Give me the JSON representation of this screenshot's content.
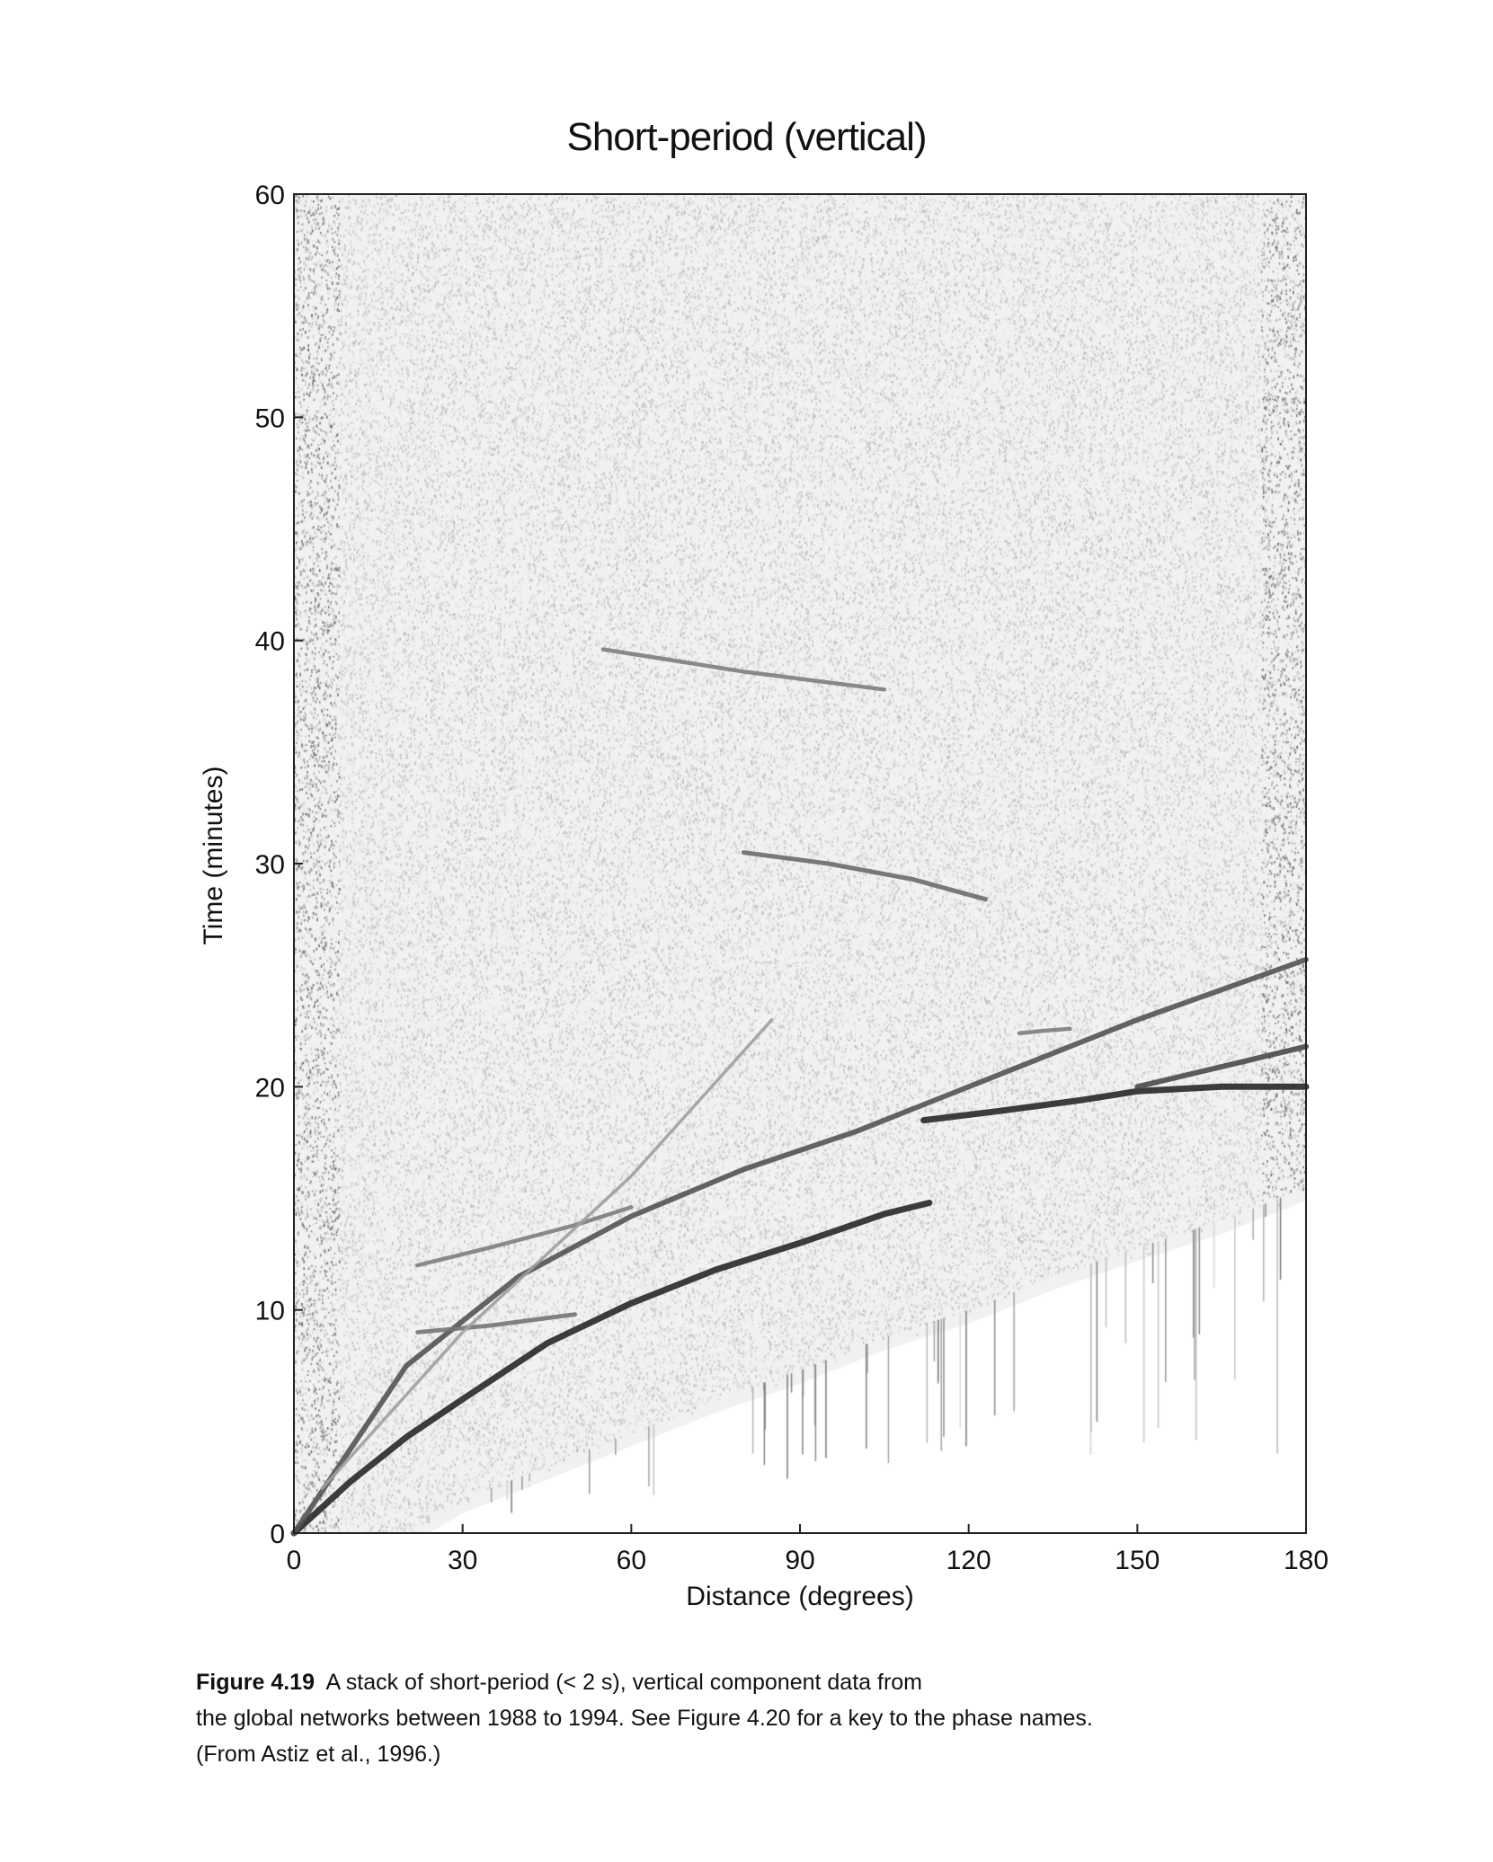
{
  "chart_data": {
    "type": "heatmap",
    "title": "Short-period (vertical)",
    "xlabel": "Distance (degrees)",
    "ylabel": "Time (minutes)",
    "xlim": [
      0,
      180
    ],
    "ylim": [
      0,
      60
    ],
    "xticks": [
      0,
      30,
      60,
      90,
      120,
      150,
      180
    ],
    "yticks": [
      0,
      10,
      20,
      30,
      40,
      50,
      60
    ],
    "colormap": "grayscale",
    "grid": false,
    "traces": [
      {
        "x": [
          0,
          10,
          20,
          30,
          45,
          60,
          75,
          90,
          105,
          113
        ],
        "y": [
          0,
          2.3,
          4.3,
          6,
          8.5,
          10.3,
          11.8,
          13,
          14.3,
          14.8
        ],
        "strength": 1.0
      },
      {
        "x": [
          112,
          125,
          140,
          150,
          165,
          180
        ],
        "y": [
          18.5,
          18.9,
          19.4,
          19.8,
          20,
          20
        ],
        "strength": 1.0
      },
      {
        "x": [
          0,
          20,
          40,
          60,
          80,
          100,
          120,
          150,
          180
        ],
        "y": [
          0,
          7.5,
          11.5,
          14.2,
          16.3,
          18,
          20,
          23,
          25.7
        ],
        "strength": 0.75
      },
      {
        "x": [
          150,
          165,
          180
        ],
        "y": [
          20,
          20.9,
          21.8
        ],
        "strength": 0.8
      },
      {
        "x": [
          22,
          35,
          50,
          60
        ],
        "y": [
          12,
          12.8,
          13.8,
          14.6
        ],
        "strength": 0.5
      },
      {
        "x": [
          22,
          35,
          50
        ],
        "y": [
          9,
          9.3,
          9.8
        ],
        "strength": 0.55
      },
      {
        "x": [
          5,
          30,
          60,
          85
        ],
        "y": [
          2,
          9,
          16,
          23
        ],
        "strength": 0.3
      },
      {
        "x": [
          80,
          95,
          110,
          123
        ],
        "y": [
          30.5,
          30,
          29.3,
          28.4
        ],
        "strength": 0.6
      },
      {
        "x": [
          55,
          65,
          80,
          105
        ],
        "y": [
          39.6,
          39.2,
          38.6,
          37.8
        ],
        "strength": 0.5
      },
      {
        "x": [
          129,
          133,
          138
        ],
        "y": [
          22.4,
          22.5,
          22.6
        ],
        "strength": 0.5
      }
    ],
    "noise_floor": {
      "x": [
        20,
        30,
        45,
        60,
        75,
        90,
        105,
        120,
        135,
        150,
        165,
        180
      ],
      "y": [
        0,
        1.5,
        3,
        4.5,
        6,
        7.3,
        8.8,
        10,
        11.5,
        12.8,
        14,
        15.5
      ]
    }
  },
  "caption": {
    "label": "Figure 4.19",
    "text_line1": "A stack of short-period (< 2 s), vertical component data from",
    "text_line2": "the global networks between 1988 to 1994. See Figure 4.20 for a key to the phase names.",
    "text_line3": "(From Astiz et al., 1996.)"
  }
}
